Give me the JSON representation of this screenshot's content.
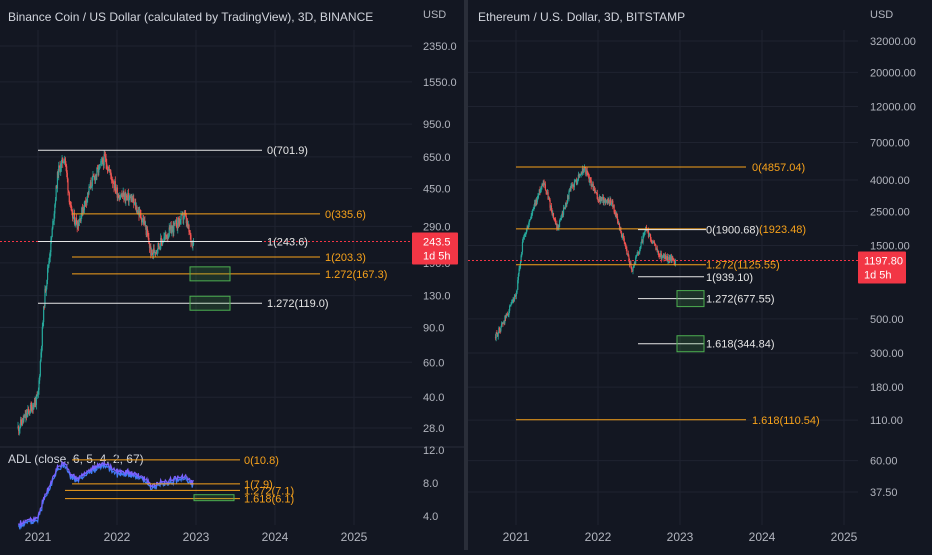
{
  "colors": {
    "background": "#131722",
    "grid": "#1f2330",
    "up": "#26a69a",
    "down": "#ef5350",
    "fib_white": "#e6e6e6",
    "fib_orange": "#f7a21b",
    "box_green": "#4caf50",
    "price_badge": "#f23645",
    "axis_text": "#b2b5be",
    "adl_line1": "#7b61ff",
    "adl_line2": "#3f7cf5"
  },
  "left": {
    "title": "Binance Coin / US Dollar (calculated by TradingView), 3D, BINANCE",
    "currency": "USD",
    "price_badge": "243.5",
    "badge_countdown": "1d 5h",
    "price_ticks": [
      "2350.0",
      "1550.0",
      "950.0",
      "650.0",
      "450.0",
      "290.0",
      "190.0",
      "130.0",
      "90.0",
      "60.0",
      "40.0",
      "28.0"
    ],
    "fib_labels": [
      "0(701.9)",
      "0(335.6)",
      "1(243.6)",
      "1(203.3)",
      "1.272(167.3)",
      "1.272(119.0)"
    ],
    "adl": {
      "title": "ADL (close, 6, 5, 4, 2, 67)",
      "ticks": [
        "12.0",
        "8.0",
        "4.0"
      ],
      "fib_labels": [
        "0(10.8)",
        "1(7.9)",
        "1.272(7.1)",
        "1.618(6.1)"
      ]
    },
    "x_ticks": [
      "2021",
      "2022",
      "2023",
      "2024",
      "2025"
    ]
  },
  "right": {
    "title": "Ethereum / U.S. Dollar, 3D, BITSTAMP",
    "currency": "USD",
    "price_badge": "1197.80",
    "badge_countdown": "1d 5h",
    "price_ticks": [
      "32000.00",
      "20000.00",
      "12000.00",
      "7000.00",
      "4000.00",
      "2500.00",
      "1500.00",
      "500.00",
      "300.00",
      "180.00",
      "110.00",
      "60.00",
      "37.50"
    ],
    "fib_labels": [
      "0(4857.04)",
      "0(1900.68)",
      "(1923.48)",
      "1.272(1125.55)",
      "1(939.10)",
      "1.272(677.55)",
      "1.618(344.84)",
      "1.618(110.54)"
    ],
    "x_ticks": [
      "2021",
      "2022",
      "2023",
      "2024",
      "2025"
    ]
  },
  "chart_data": [
    {
      "type": "line",
      "title": "Binance Coin / US Dollar (calculated by TradingView), 3D, BINANCE",
      "scale": "log",
      "x": [
        "2020-10",
        "2021-01",
        "2021-02",
        "2021-03",
        "2021-04",
        "2021-05",
        "2021-06",
        "2021-07",
        "2021-09",
        "2021-11",
        "2022-01",
        "2022-03",
        "2022-05",
        "2022-06",
        "2022-09",
        "2022-11",
        "2022-12"
      ],
      "series": [
        {
          "values": [
            28,
            40,
            130,
            250,
            550,
            650,
            330,
            300,
            480,
            640,
            420,
            400,
            300,
            210,
            280,
            330,
            244
          ]
        }
      ],
      "fib_levels": [
        701.9,
        335.6,
        243.6,
        203.3,
        167.3,
        119.0
      ],
      "ylim": [
        25,
        3000
      ]
    },
    {
      "type": "line",
      "title": "Ethereum / U.S. Dollar, 3D, BITSTAMP",
      "scale": "log",
      "x": [
        "2020-10",
        "2021-01",
        "2021-02",
        "2021-05",
        "2021-07",
        "2021-09",
        "2021-11",
        "2022-01",
        "2022-03",
        "2022-06",
        "2022-08",
        "2022-10",
        "2022-12"
      ],
      "series": [
        {
          "values": [
            380,
            700,
            1600,
            4000,
            1900,
            3500,
            4800,
            3000,
            2900,
            1050,
            1900,
            1300,
            1200
          ]
        }
      ],
      "fib_levels": [
        4857.04,
        1923.48,
        1900.68,
        1125.55,
        939.1,
        677.55,
        344.84,
        110.54
      ],
      "ylim": [
        30,
        45000
      ]
    }
  ]
}
